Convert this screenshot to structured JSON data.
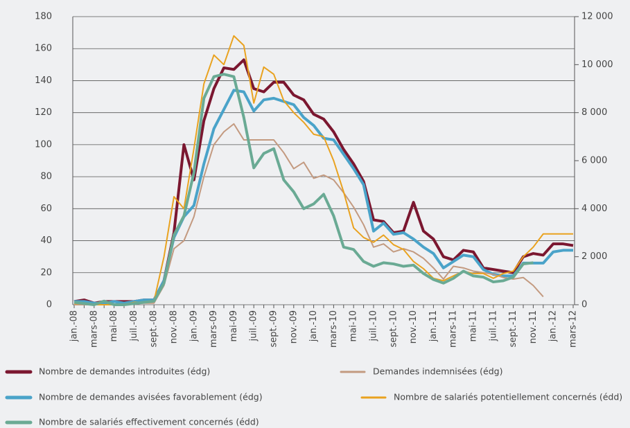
{
  "chart_data": {
    "type": "line",
    "categories": [
      "jan.-08",
      null,
      "mars-08",
      null,
      "mai-08",
      null,
      "juil.-08",
      null,
      "sept.-08",
      null,
      "nov.-08",
      null,
      "jan.-09",
      null,
      "mars-09",
      null,
      "mai-09",
      null,
      "juil.-09",
      null,
      "sept.-09",
      null,
      "nov.-09",
      null,
      "jan.-10",
      null,
      "mars-10",
      null,
      "mai-10",
      null,
      "juil.-10",
      null,
      "sept.-10",
      null,
      "nov.-10",
      null,
      "jan.-11",
      null,
      "mars-11",
      null,
      "mai-11",
      null,
      "juil.-11",
      null,
      "sept.-11",
      null,
      "nov.-11",
      null,
      "jan.-12",
      null,
      "mars-12"
    ],
    "series": [
      {
        "name": "Nombre de demandes introduites (édg)",
        "color": "#7b1730",
        "width": 4,
        "axis": "y",
        "values": [
          2,
          3,
          1,
          2,
          2,
          2,
          2,
          3,
          3,
          15,
          45,
          100,
          78,
          115,
          135,
          148,
          147,
          153,
          135,
          133,
          139,
          139,
          131,
          128,
          119,
          116,
          108,
          97,
          88,
          77,
          53,
          52,
          45,
          46,
          64,
          46,
          41,
          30,
          28,
          34,
          33,
          23,
          22,
          21,
          20,
          30,
          32,
          31,
          38,
          38,
          37
        ]
      },
      {
        "name": "Nombre de demandes avisées favorablement (édg)",
        "color": "#4aa3c9",
        "width": 4,
        "axis": "y",
        "values": [
          2,
          2,
          1,
          1,
          2,
          1,
          2,
          3,
          3,
          15,
          42,
          55,
          62,
          88,
          110,
          122,
          134,
          133,
          121,
          128,
          129,
          127,
          125,
          117,
          112,
          104,
          103,
          94,
          85,
          75,
          46,
          51,
          44,
          45,
          41,
          36,
          32,
          23,
          27,
          31,
          30,
          22,
          19,
          18,
          18,
          26,
          26,
          26,
          33,
          34,
          34
        ]
      },
      {
        "name": "Demandes indemnisées (édg)",
        "color": "#c39a80",
        "width": 2,
        "axis": "y",
        "values": [
          0,
          0,
          0,
          0,
          0,
          0,
          1,
          1,
          1,
          12,
          35,
          40,
          55,
          80,
          100,
          108,
          113,
          103,
          103,
          103,
          103,
          95,
          85,
          89,
          79,
          81,
          78,
          70,
          61,
          50,
          36,
          38,
          33,
          35,
          33,
          29,
          23,
          16,
          24,
          23,
          21,
          20,
          19,
          17,
          16,
          17,
          12,
          5,
          null,
          null,
          null
        ]
      },
      {
        "name": "Nombre de salariés potentiellement concernés (édd)",
        "color": "#e9a21f",
        "width": 2,
        "axis": "y2",
        "values": [
          50,
          30,
          0,
          0,
          0,
          0,
          100,
          100,
          150,
          2000,
          4500,
          4000,
          6500,
          9200,
          10400,
          10000,
          11200,
          10800,
          8400,
          9900,
          9600,
          8500,
          8000,
          7600,
          7100,
          7000,
          6000,
          4700,
          3200,
          2800,
          2600,
          2900,
          2500,
          2300,
          1800,
          1500,
          1100,
          1000,
          1200,
          1400,
          1300,
          1300,
          1100,
          1300,
          1400,
          2000,
          2400,
          2950,
          2950,
          2950,
          2950
        ]
      },
      {
        "name": "Nombre de salariés effectivement concernés (édd)",
        "color": "#6aaa94",
        "width": 4,
        "axis": "y2",
        "values": [
          100,
          50,
          0,
          150,
          0,
          0,
          50,
          100,
          150,
          900,
          2900,
          3700,
          5500,
          8600,
          9500,
          9600,
          9500,
          7800,
          5700,
          6300,
          6500,
          5200,
          4700,
          4000,
          4200,
          4600,
          3700,
          2400,
          2300,
          1800,
          1600,
          1750,
          1700,
          1600,
          1650,
          1300,
          1050,
          900,
          1100,
          1400,
          1200,
          1150,
          950,
          1000,
          1150,
          1700,
          1750,
          null,
          null,
          null,
          null
        ]
      }
    ],
    "ylim": [
      0,
      180
    ],
    "yticks": [
      0,
      20,
      40,
      60,
      80,
      100,
      120,
      140,
      160,
      180
    ],
    "y2lim": [
      0,
      12000
    ],
    "y2ticks": [
      0,
      {
        "value": 2000,
        "label": "2 000"
      },
      {
        "value": 4000,
        "label": "4 000"
      },
      {
        "value": 6000,
        "label": "6 000"
      },
      {
        "value": 8000,
        "label": "8 000"
      },
      {
        "value": 10000,
        "label": "10 000"
      },
      {
        "value": 12000,
        "label": "12 000"
      }
    ],
    "grid": true
  }
}
